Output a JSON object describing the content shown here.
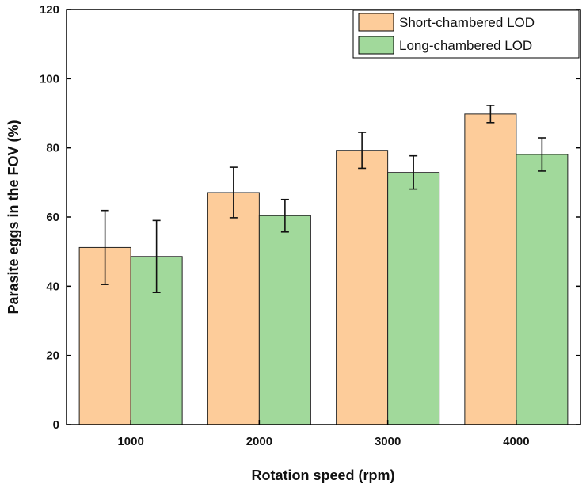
{
  "chart_data": {
    "type": "bar",
    "title": "",
    "xlabel": "Rotation speed (rpm)",
    "ylabel": "Parasite eggs in the FOV (%)",
    "ylim": [
      0,
      120
    ],
    "yticks": [
      0,
      20,
      40,
      60,
      80,
      100,
      120
    ],
    "categories": [
      "1000",
      "2000",
      "3000",
      "4000"
    ],
    "series": [
      {
        "name": "Short-chambered LOD",
        "color": "#fdcc9a",
        "values": [
          51.2,
          67.1,
          79.3,
          89.8
        ],
        "errors": [
          10.7,
          7.3,
          5.2,
          2.5
        ]
      },
      {
        "name": "Long-chambered LOD",
        "color": "#a1d99b",
        "values": [
          48.6,
          60.4,
          72.9,
          78.1
        ],
        "errors": [
          10.4,
          4.7,
          4.8,
          4.8
        ]
      }
    ],
    "legend": "top-right",
    "grid": false
  }
}
